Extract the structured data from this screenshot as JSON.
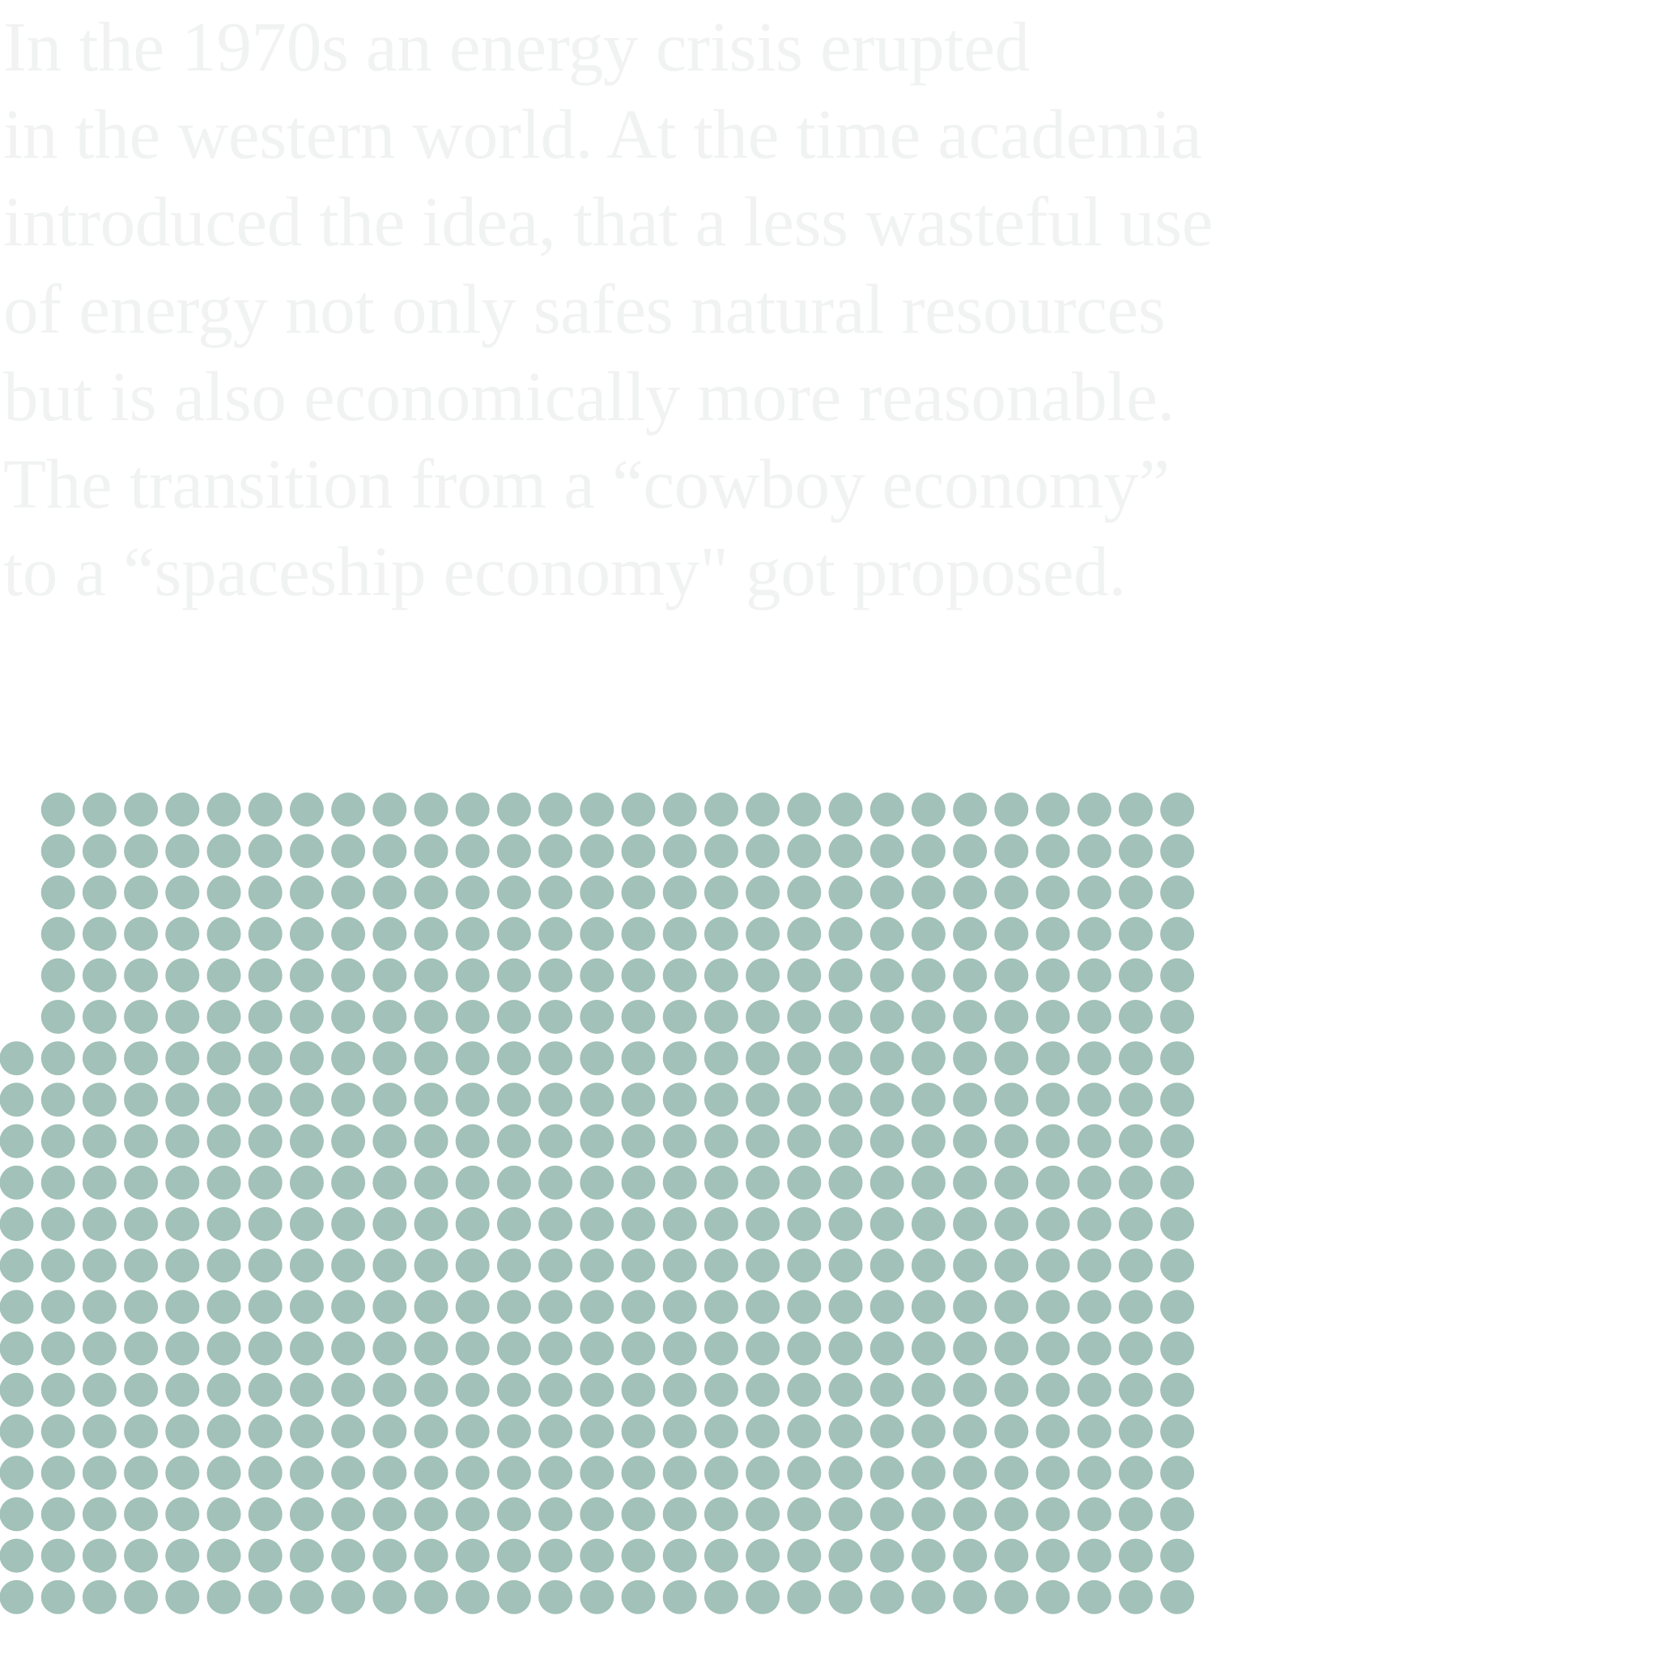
{
  "intro": {
    "lines": [
      "In the 1970s an energy crisis erupted",
      "in the western world. At the time academia",
      "introduced the idea, that a less wasteful use",
      "of energy not only safes natural resources",
      "but is also economically more reasonable.",
      "The transition from a “cowboy economy”",
      "to a “spaceship economy\" got proposed."
    ]
  },
  "dot_grid": {
    "color": "#a2c1b8",
    "columns": 29,
    "rows": 20,
    "empty_cells": [
      {
        "row": 0,
        "col": 0
      },
      {
        "row": 1,
        "col": 0
      },
      {
        "row": 2,
        "col": 0
      },
      {
        "row": 3,
        "col": 0
      },
      {
        "row": 4,
        "col": 0
      },
      {
        "row": 5,
        "col": 0
      }
    ]
  }
}
